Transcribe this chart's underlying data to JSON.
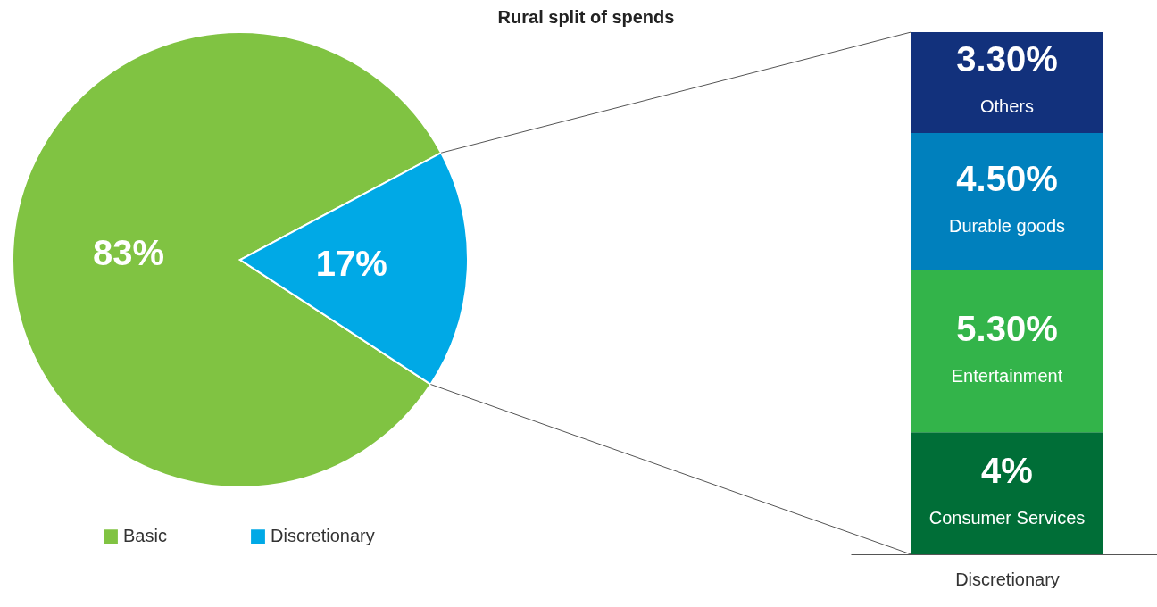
{
  "chart_data": [
    {
      "type": "pie",
      "title": "Rural split of spends",
      "categories": [
        "Basic",
        "Discretionary"
      ],
      "values": [
        83,
        17
      ],
      "colors": [
        "#80c342",
        "#00a9e6"
      ],
      "value_labels": [
        "83%",
        "17%"
      ],
      "legend": "bottom left"
    },
    {
      "type": "bar",
      "stacked": true,
      "categories": [
        null
      ],
      "xlabel": "Discretionary",
      "tick_labels": false,
      "series": [
        {
          "name": "Consumer Services",
          "color": "#006e37",
          "values": [
            4
          ],
          "value_labels": [
            "4%"
          ]
        },
        {
          "name": "Entertainment",
          "color": "#33b44a",
          "values": [
            5.3
          ],
          "value_labels": [
            "5.30%"
          ]
        },
        {
          "name": "Durable goods",
          "color": "#0080bd",
          "values": [
            4.5
          ],
          "value_labels": [
            "4.50%"
          ]
        },
        {
          "name": "Others",
          "color": "#12317c",
          "values": [
            3.3
          ],
          "value_labels": [
            "3.30%"
          ]
        }
      ]
    }
  ]
}
